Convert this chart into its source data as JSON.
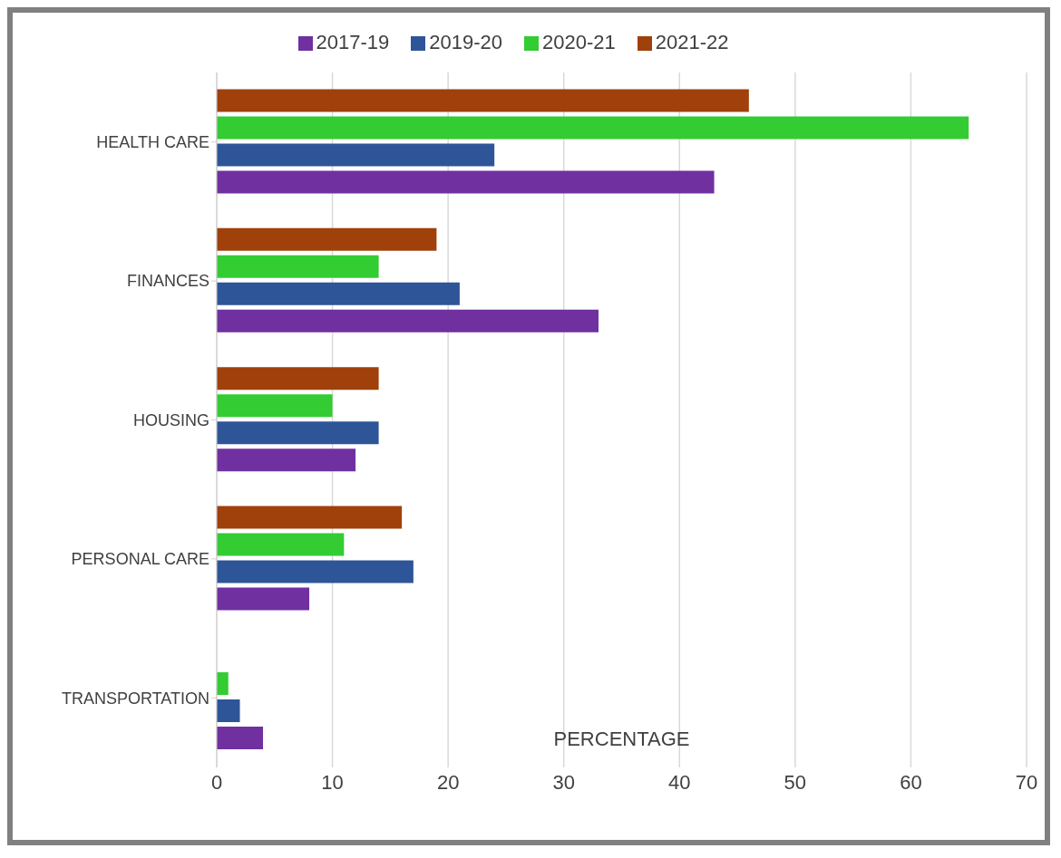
{
  "chart_data": {
    "type": "bar",
    "orientation": "horizontal",
    "xlabel": "PERCENTAGE",
    "categories": [
      "HEALTH CARE",
      "FINANCES",
      "HOUSING",
      "PERSONAL CARE",
      "TRANSPORTATION"
    ],
    "series": [
      {
        "name": "2021-22",
        "color": "#a0400a",
        "values": [
          46,
          19,
          14,
          16,
          0
        ]
      },
      {
        "name": "2020-21",
        "color": "#33cc33",
        "values": [
          65,
          14,
          10,
          11,
          1
        ]
      },
      {
        "name": "2019-20",
        "color": "#2e5597",
        "values": [
          24,
          21,
          14,
          17,
          2
        ]
      },
      {
        "name": "2017-19",
        "color": "#7030a0",
        "values": [
          43,
          33,
          12,
          8,
          4
        ]
      }
    ],
    "xlim": [
      0,
      70
    ],
    "xticks": [
      0,
      10,
      20,
      30,
      40,
      50,
      60,
      70
    ],
    "grid": "x",
    "legend": "top"
  }
}
